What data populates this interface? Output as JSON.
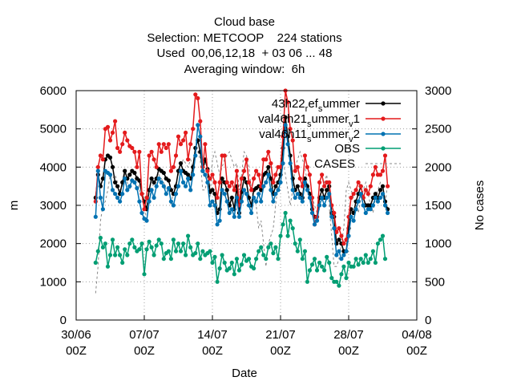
{
  "chart_data": {
    "type": "line",
    "title_lines": [
      "Cloud base",
      "Selection: METCOOP    224 stations",
      "Used  00,06,12,18  + 03 06 ... 48",
      "Averaging window:  6h"
    ],
    "xlabel": "Date",
    "ylabel": "m",
    "y2label": "No cases",
    "x_tick_labels": [
      {
        "date": "30/06",
        "hour": "00Z",
        "day": 0
      },
      {
        "date": "07/07",
        "hour": "00Z",
        "day": 7
      },
      {
        "date": "14/07",
        "hour": "00Z",
        "day": 14
      },
      {
        "date": "21/07",
        "hour": "00Z",
        "day": 21
      },
      {
        "date": "28/07",
        "hour": "00Z",
        "day": 28
      },
      {
        "date": "04/08",
        "hour": "00Z",
        "day": 35
      }
    ],
    "xlim_days": [
      0,
      35
    ],
    "ylim": [
      0,
      6000
    ],
    "y_ticks": [
      0,
      1000,
      2000,
      3000,
      4000,
      5000,
      6000
    ],
    "y2lim": [
      0,
      3000
    ],
    "y2_ticks": [
      0,
      500,
      1000,
      1500,
      2000,
      2500,
      3000
    ],
    "grid": true,
    "legend_position": "top-right",
    "legend": [
      {
        "label": "43h22",
        "sub": "ref",
        "label2": "",
        "sub2": "s",
        "label3": "ummer",
        "sub3": "",
        "color": "#000000"
      },
      {
        "label": "val46h2​1",
        "sub": "",
        "label2": "",
        "sub2": "s",
        "label3": "ummer",
        "sub3": "v",
        "tail": "1",
        "color": "#e41a1c"
      },
      {
        "label": "val46h1​1",
        "sub": "",
        "label2": "",
        "sub2": "s",
        "label3": "ummer",
        "sub3": "v",
        "tail": "2",
        "color": "#0072b2"
      },
      {
        "label": "OBS",
        "color": "#009e73"
      },
      {
        "label": "CASES",
        "color": "#888888"
      }
    ],
    "series": [
      {
        "key": "ref",
        "color": "#000000",
        "axis": "y",
        "x_start_day": 2.0,
        "x_step_days": 0.25,
        "values": [
          3200,
          3800,
          3500,
          3700,
          4200,
          4300,
          4250,
          4000,
          3600,
          3500,
          3300,
          3600,
          3900,
          3700,
          3800,
          3900,
          3850,
          3700,
          3650,
          3300,
          3100,
          2900,
          3400,
          3700,
          3600,
          3700,
          3950,
          3900,
          3850,
          3700,
          3650,
          3400,
          3300,
          3500,
          3900,
          4100,
          3900,
          3850,
          3800,
          3700,
          4000,
          4500,
          4700,
          4400,
          3900,
          4200,
          3950,
          3350,
          3400,
          3300,
          2800,
          2900,
          3700,
          3600,
          3400,
          3000,
          3200,
          2900,
          3500,
          2800,
          3350,
          3700,
          3600,
          3200,
          3000,
          3400,
          3450,
          3500,
          3400,
          3800,
          3850,
          4000,
          3700,
          3300,
          3500,
          3600,
          3800,
          4500,
          5300,
          4800,
          4300,
          3700,
          3400,
          3500,
          3300,
          3200,
          3700,
          3500,
          3300,
          2900,
          2700,
          2700,
          3200,
          3400,
          3200,
          3400,
          3500,
          2800,
          2700,
          2000,
          2100,
          2000,
          1800,
          1800,
          2400,
          2900,
          2800,
          3100,
          3300,
          3500,
          3200,
          3000,
          3000,
          3000,
          3200,
          3300,
          3200,
          3400,
          3500,
          3100,
          2900
        ]
      },
      {
        "key": "val1",
        "color": "#e41a1c",
        "axis": "y",
        "x_start_day": 2.0,
        "x_step_days": 0.25,
        "values": [
          3100,
          4000,
          4300,
          4200,
          5000,
          5050,
          4700,
          4900,
          5200,
          4500,
          4400,
          4600,
          4900,
          4700,
          4550,
          4500,
          4400,
          4000,
          4400,
          3300,
          2900,
          3200,
          4300,
          4400,
          4200,
          4000,
          4600,
          4400,
          4600,
          4500,
          4600,
          3900,
          4000,
          4300,
          4800,
          4600,
          4700,
          4900,
          4200,
          4600,
          5000,
          5900,
          5800,
          5200,
          4000,
          4600,
          3900,
          3700,
          3800,
          3600,
          3200,
          3600,
          4300,
          4300,
          3600,
          3500,
          3600,
          3400,
          3900,
          3000,
          3700,
          3900,
          4200,
          3600,
          3400,
          3700,
          3900,
          3800,
          3500,
          4200,
          4200,
          4400,
          4100,
          3600,
          3800,
          4000,
          4000,
          4800,
          6000,
          5700,
          5000,
          4700,
          3900,
          4000,
          3700,
          3500,
          4300,
          4000,
          3800,
          3200,
          2500,
          2700,
          3600,
          3800,
          3500,
          3600,
          3600,
          3000,
          2800,
          2300,
          2400,
          2200,
          2000,
          2100,
          2700,
          3200,
          3300,
          3400,
          3600,
          3500,
          3200,
          3400,
          3300,
          3500,
          3800,
          4000,
          3800,
          3800,
          3900,
          4300,
          3500
        ]
      },
      {
        "key": "val2",
        "color": "#0072b2",
        "axis": "y",
        "x_start_day": 2.0,
        "x_step_days": 0.25,
        "values": [
          2700,
          3900,
          3200,
          2900,
          3900,
          3850,
          3800,
          3400,
          3300,
          3200,
          3100,
          3300,
          3700,
          3400,
          3500,
          3650,
          3600,
          3450,
          3100,
          2800,
          2650,
          2600,
          3100,
          3400,
          3200,
          3500,
          3700,
          3600,
          3500,
          3300,
          3450,
          3100,
          3000,
          3300,
          3500,
          3900,
          3600,
          3500,
          3700,
          3400,
          3800,
          4300,
          5100,
          4800,
          3900,
          3800,
          3600,
          3000,
          3100,
          3000,
          2500,
          2600,
          3400,
          3300,
          3100,
          2800,
          2900,
          2700,
          3200,
          2700,
          3100,
          3400,
          3300,
          3000,
          2800,
          3200,
          3100,
          3300,
          3100,
          3500,
          3600,
          3800,
          3400,
          3100,
          3300,
          3400,
          3600,
          4100,
          5100,
          4600,
          4100,
          3400,
          3200,
          3300,
          3200,
          3100,
          3600,
          3400,
          3200,
          2800,
          2500,
          2600,
          3000,
          3200,
          3000,
          3200,
          3300,
          2700,
          2400,
          1700,
          1800,
          1600,
          1700,
          1800,
          2200,
          2700,
          2600,
          2900,
          3100,
          3300,
          3000,
          2800,
          2900,
          2900,
          3000,
          3200,
          3100,
          3200,
          3300,
          3000,
          2800
        ]
      },
      {
        "key": "obs",
        "color": "#009e73",
        "axis": "y",
        "x_start_day": 2.0,
        "x_step_days": 0.25,
        "values": [
          1500,
          1800,
          2150,
          1900,
          2000,
          1400,
          1700,
          2100,
          1700,
          1900,
          1700,
          1500,
          1850,
          1700,
          2000,
          2100,
          1900,
          1800,
          1850,
          2000,
          1200,
          1850,
          2050,
          1900,
          1700,
          1950,
          2100,
          2000,
          1600,
          1750,
          1800,
          1600,
          2100,
          1800,
          2000,
          1800,
          2000,
          1700,
          2200,
          1900,
          1700,
          1750,
          2000,
          1600,
          1800,
          1700,
          1750,
          1800,
          1500,
          1650,
          1000,
          1350,
          1700,
          1500,
          1300,
          1350,
          1500,
          1200,
          1600,
          1300,
          1450,
          1700,
          1550,
          1600,
          1400,
          1350,
          1600,
          1800,
          1900,
          1700,
          1600,
          1900,
          2000,
          1750,
          1900,
          1600,
          2200,
          2500,
          2800,
          2200,
          2600,
          2400,
          2000,
          1800,
          2100,
          1600,
          1800,
          1000,
          1300,
          1450,
          1600,
          1300,
          1500,
          1400,
          1300,
          1650,
          1500,
          1100,
          1000,
          1000,
          900,
          1200,
          1400,
          1100,
          1500,
          1400,
          1400,
          1600,
          1450,
          1600,
          1500,
          1700,
          1500,
          1600,
          1800,
          1500,
          2000,
          2100,
          2200,
          1600
        ]
      },
      {
        "key": "cases",
        "color": "#888888",
        "axis": "y2",
        "dashed": true,
        "x_start_day": 2.0,
        "x_step_days": 0.25,
        "values": [
          350,
          700,
          1300,
          1500,
          1550,
          1700,
          1900,
          1850,
          1900,
          1800,
          1700,
          1750,
          1900,
          1800,
          1700,
          1850,
          1800,
          1900,
          1700,
          1600,
          1500,
          1300,
          1600,
          1700,
          1800,
          1750,
          1900,
          1850,
          1800,
          1700,
          1750,
          1500,
          1700,
          1800,
          1900,
          2000,
          2100,
          2050,
          2000,
          2100,
          2000,
          2150,
          2200,
          2100,
          1700,
          1700,
          1900,
          1600,
          2100,
          2200,
          2050,
          1900,
          2000,
          2100,
          2150,
          2200,
          2100,
          2000,
          2050,
          1700,
          1900,
          2200,
          2150,
          2000,
          1700,
          1600,
          1500,
          1200,
          1300,
          1000,
          700,
          1000,
          1100,
          1200,
          1500,
          1800,
          2000,
          2100,
          1900,
          1700,
          1500,
          1700,
          2000,
          2100,
          2200,
          2100,
          2000,
          1800,
          1700,
          1600,
          1500,
          1400,
          1450,
          1600,
          1800,
          1900,
          1500,
          1100,
          700,
          700,
          800,
          1000,
          1200,
          1700,
          1800,
          1700,
          1600,
          1500,
          1400,
          1600,
          1700,
          1800,
          1650,
          1500,
          1400,
          1600,
          1700,
          1800,
          1750,
          1500,
          1800
        ]
      }
    ]
  },
  "legend_text": {
    "line1_main": "43h22",
    "line1_sub": "r",
    "line1_mid": "ef",
    "line1_sub2": "s",
    "line1_tail": "ummer",
    "line2_main": "val46h2",
    "line2_mid": "1",
    "line2_sub": "s",
    "line2_tail": "ummer",
    "line2_sub2": "v",
    "line2_end": "1",
    "line3_main": "val46h1",
    "line3_mid": "1",
    "line3_sub": "s",
    "line3_tail": "ummer",
    "line3_sub2": "v",
    "line3_end": "2",
    "line4": "OBS",
    "line5": "CASES"
  }
}
